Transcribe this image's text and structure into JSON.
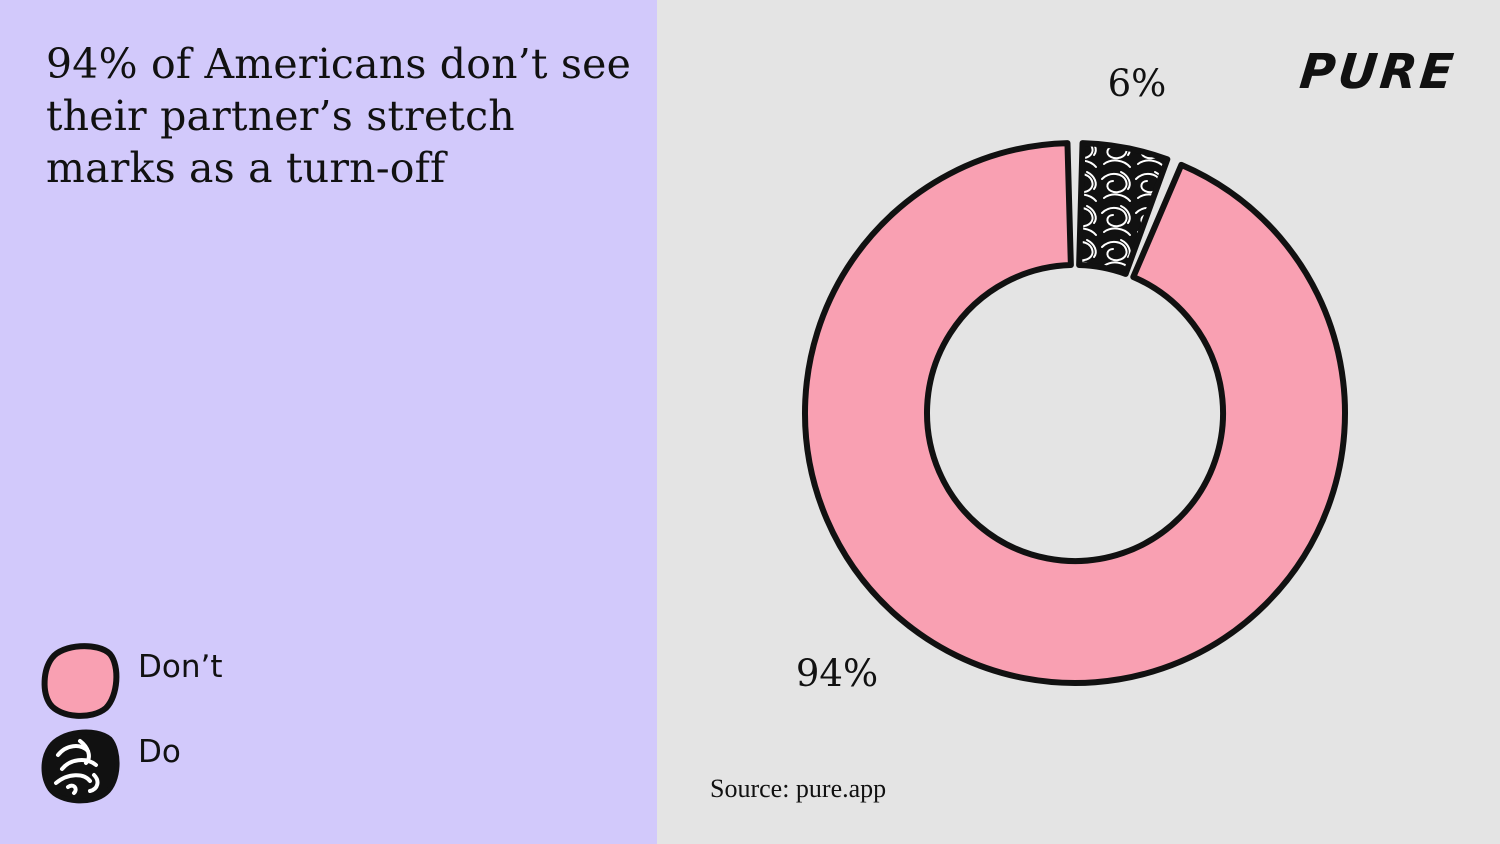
{
  "headline": "94% of Americans don’t see their partner’s stretch marks as a turn-off",
  "logo_text": "PURE",
  "source": "Source: pure.app",
  "colors": {
    "left_background": "#d2c9fb",
    "right_background": "#e4e4e4",
    "dont_fill": "#f9a0b2",
    "do_fill": "#111111",
    "outline": "#111111"
  },
  "legend": {
    "items": [
      {
        "label": "Don’t",
        "swatch": "pink-blob",
        "color": "#f9a0b2"
      },
      {
        "label": "Do",
        "swatch": "black-scribble-blob",
        "color": "#111111"
      }
    ]
  },
  "chart_data": {
    "type": "pie",
    "donut": true,
    "categories": [
      "Do",
      "Don’t"
    ],
    "values": [
      6,
      94
    ],
    "labels": [
      "6%",
      "94%"
    ],
    "colors": [
      "#111111",
      "#f9a0b2"
    ],
    "start": "top",
    "direction": "clockwise",
    "legend_position": "bottom-left"
  }
}
